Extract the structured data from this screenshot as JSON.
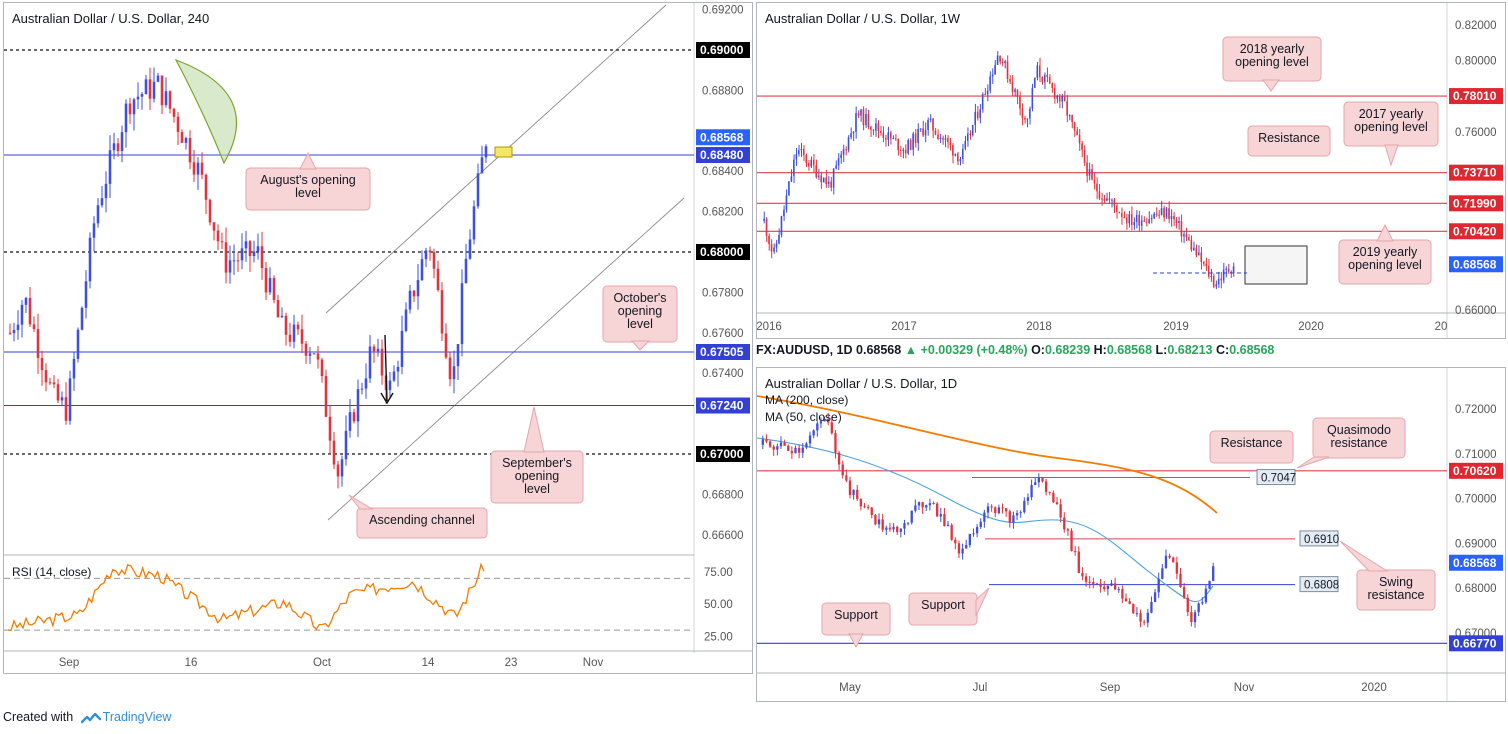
{
  "panel1": {
    "title": "Australian Dollar / U.S. Dollar, 240",
    "rsi_label": "RSI (14, close)",
    "rsi_ticks": [
      "75.00",
      "50.00",
      "25.00"
    ],
    "price_ticks": [
      "0.69200",
      "0.68800",
      "0.68400",
      "0.68200",
      "0.67800",
      "0.67600",
      "0.67400",
      "0.66800",
      "0.66600"
    ],
    "x_ticks": [
      "Sep",
      "16",
      "Oct",
      "14",
      "23",
      "Nov"
    ],
    "callouts": {
      "august": "August's opening level",
      "october": "October's opening level",
      "september": "September's opening level",
      "channel": "Ascending channel"
    },
    "levels": [
      {
        "value": 0.69,
        "label": "0.69000",
        "kind": "round"
      },
      {
        "value": 0.68568,
        "label": "0.68568",
        "kind": "price"
      },
      {
        "value": 0.6848,
        "label": "0.68480",
        "kind": "level"
      },
      {
        "value": 0.68,
        "label": "0.68000",
        "kind": "round"
      },
      {
        "value": 0.67505,
        "label": "0.67505",
        "kind": "level"
      },
      {
        "value": 0.6724,
        "label": "0.67240",
        "kind": "level"
      },
      {
        "value": 0.67,
        "label": "0.67000",
        "kind": "round"
      }
    ]
  },
  "panel2": {
    "title": "Australian Dollar / U.S. Dollar, 1W",
    "price_ticks": [
      "0.82000",
      "0.80000",
      "0.76000",
      "0.66000"
    ],
    "x_ticks": [
      "2016",
      "2017",
      "2018",
      "2019",
      "2020",
      "20"
    ],
    "callouts": {
      "y2018": "2018 yearly opening level",
      "y2017": "2017 yearly opening level",
      "resistance": "Resistance",
      "y2019": "2019 yearly opening level"
    },
    "levels": [
      {
        "value": 0.7801,
        "label": "0.78010",
        "kind": "red"
      },
      {
        "value": 0.7371,
        "label": "0.73710",
        "kind": "red"
      },
      {
        "value": 0.7199,
        "label": "0.71990",
        "kind": "red"
      },
      {
        "value": 0.7042,
        "label": "0.70420",
        "kind": "red"
      },
      {
        "value": 0.68568,
        "label": "0.68568",
        "kind": "price"
      }
    ]
  },
  "panel3": {
    "ohlc": {
      "symbol": "FX:AUDUSD, 1D",
      "last": "0.68568",
      "change": "+0.00329 (+0.48%)",
      "o_label": "O:",
      "o": "0.68239",
      "h_label": "H:",
      "h": "0.68568",
      "l_label": "L:",
      "l": "0.68213",
      "c_label": "C:",
      "c": "0.68568"
    },
    "title": "Australian Dollar / U.S. Dollar, 1D",
    "ma200": "MA (200, close)",
    "ma50": "MA (50, close)",
    "price_ticks": [
      "0.72000",
      "0.71000",
      "0.70000",
      "0.69000",
      "0.68000",
      "0.67000"
    ],
    "x_ticks": [
      "May",
      "Jul",
      "Sep",
      "Nov",
      "2020"
    ],
    "callouts": {
      "resistance": "Resistance",
      "quasimodo": "Quasimodo resistance",
      "swing": "Swing resistance",
      "support_mid": "Support",
      "support_low": "Support"
    },
    "inline_labels": {
      "qm": "0.7047",
      "swing": "0.6910",
      "support": "0.6808"
    },
    "levels": [
      {
        "value": 0.7062,
        "label": "0.70620",
        "kind": "red"
      },
      {
        "value": 0.68568,
        "label": "0.68568",
        "kind": "price"
      },
      {
        "value": 0.6677,
        "label": "0.66770",
        "kind": "blue"
      }
    ]
  },
  "footer": {
    "created_with": "Created with",
    "brand": "TradingView"
  },
  "colors": {
    "up": "#3f51d8",
    "down": "#e0343e",
    "level_blue": "#3340d4",
    "level_red": "#e0414c",
    "rsi": "#f57c00",
    "ma200": "#f57c00",
    "ma50": "#4aa3df",
    "callout_bg": "#f7d4d6"
  }
}
